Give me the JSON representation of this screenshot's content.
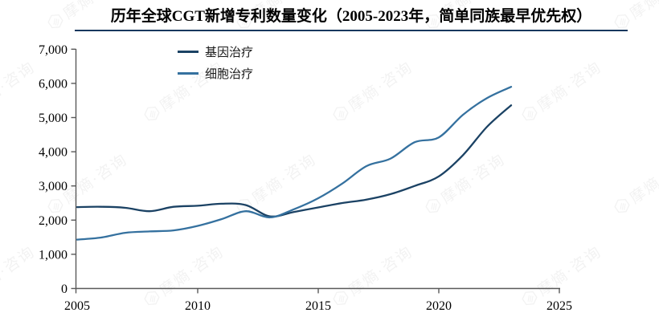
{
  "chart_data": {
    "type": "line",
    "title": "历年全球CGT新增专利数量变化（2005-2023年，简单同族最早优先权）",
    "x": [
      2005,
      2006,
      2007,
      2008,
      2009,
      2010,
      2011,
      2012,
      2013,
      2014,
      2015,
      2016,
      2017,
      2018,
      2019,
      2020,
      2021,
      2022,
      2023
    ],
    "series": [
      {
        "name": "基因治疗",
        "color": "#1B4264",
        "values": [
          2380,
          2390,
          2360,
          2260,
          2390,
          2420,
          2480,
          2440,
          2110,
          2240,
          2370,
          2500,
          2600,
          2760,
          3000,
          3280,
          3900,
          4730,
          5360
        ]
      },
      {
        "name": "细胞治疗",
        "color": "#35719F",
        "values": [
          1430,
          1490,
          1630,
          1670,
          1700,
          1830,
          2030,
          2260,
          2080,
          2320,
          2640,
          3070,
          3580,
          3800,
          4280,
          4420,
          5080,
          5570,
          5900
        ]
      }
    ],
    "xlabel": "",
    "ylabel": "",
    "xlim": [
      2005,
      2025
    ],
    "ylim": [
      0,
      7000
    ],
    "xticks": [
      2005,
      2010,
      2015,
      2020,
      2025
    ],
    "xtick_labels": [
      "2005",
      "2010",
      "2015",
      "2020",
      "2025"
    ],
    "ytick_values": [
      0,
      1000,
      2000,
      3000,
      4000,
      5000,
      6000,
      7000
    ],
    "ytick_labels": [
      "0",
      "1,000",
      "2,000",
      "3,000",
      "4,000",
      "5,000",
      "6,000",
      "7,000"
    ],
    "grid": false,
    "legend_position": "top-left-inside"
  },
  "watermark": {
    "text": "摩熵·咨询"
  },
  "colors": {
    "axis": "#595959",
    "tick_text": "#000000",
    "title_text": "#000000",
    "title_underline": "#17375E",
    "watermark": "#8a8a8a",
    "background": "#FFFFFF"
  }
}
